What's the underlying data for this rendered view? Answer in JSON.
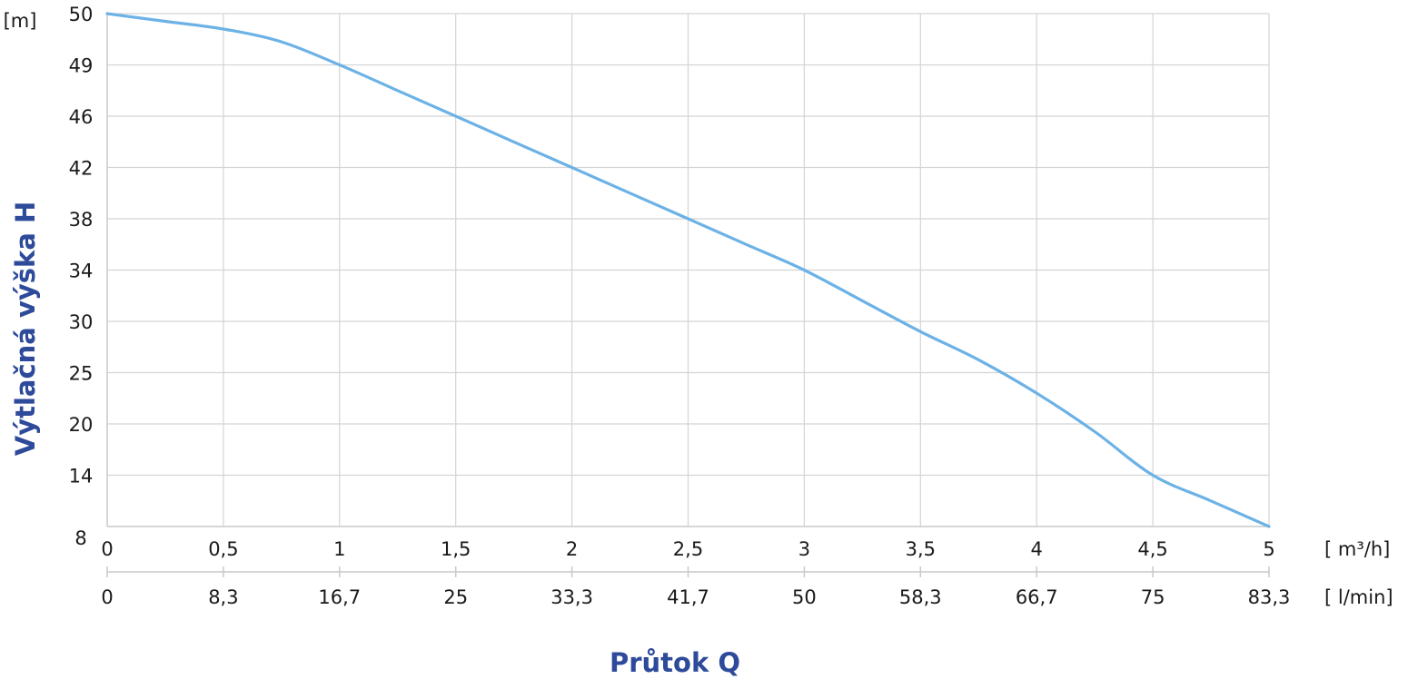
{
  "chart_data": {
    "type": "line",
    "title": "",
    "xlabel": "Průtok Q",
    "ylabel": "Výtlačná výška H",
    "y_unit": "[m]",
    "x_unit_primary": "[ m³/h]",
    "x_unit_secondary": "[ l/min]",
    "x_ticks_primary": [
      "0",
      "0,5",
      "1",
      "1,5",
      "2",
      "2,5",
      "3",
      "3,5",
      "4",
      "4,5",
      "5"
    ],
    "x_ticks_secondary": [
      "0",
      "8,3",
      "16,7",
      "25",
      "33,3",
      "41,7",
      "50",
      "58,3",
      "66,7",
      "75",
      "83,3"
    ],
    "y_ticks": [
      "8",
      "14",
      "20",
      "25",
      "30",
      "34",
      "38",
      "42",
      "46",
      "49",
      "50"
    ],
    "xlim": [
      0,
      5
    ],
    "grid": true,
    "series": [
      {
        "color": "#6cb2e6",
        "x": [
          0,
          0.25,
          0.5,
          0.75,
          1,
          1.25,
          1.5,
          1.75,
          2,
          2.25,
          2.5,
          2.75,
          3,
          3.25,
          3.5,
          3.75,
          4,
          4.25,
          4.5,
          4.75,
          5
        ],
        "y_tick_position": [
          10.0,
          9.85,
          9.7,
          9.45,
          9.0,
          8.5,
          8.0,
          7.5,
          7.0,
          6.5,
          6.0,
          5.5,
          5.0,
          4.4,
          3.8,
          3.25,
          2.6,
          1.85,
          1.0,
          0.5,
          0.0
        ]
      }
    ]
  }
}
